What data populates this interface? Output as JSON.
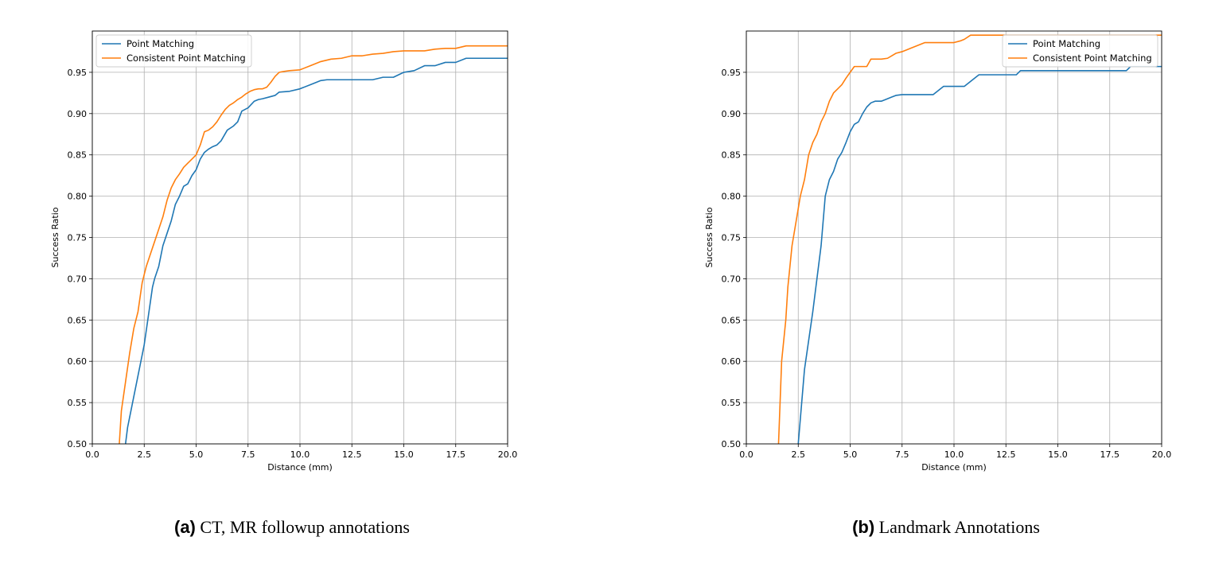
{
  "captions": [
    {
      "letter": "(a)",
      "text": " CT, MR followup annotations"
    },
    {
      "letter": "(b)",
      "text": " Landmark Annotations"
    }
  ],
  "chart_data": [
    {
      "type": "line",
      "xlabel": "Distance (mm)",
      "ylabel": "Success Ratio",
      "xlim": [
        0,
        20
      ],
      "ylim": [
        0.5,
        1.0
      ],
      "xticks": [
        "0.0",
        "2.5",
        "5.0",
        "7.5",
        "10.0",
        "12.5",
        "15.0",
        "17.5",
        "20.0"
      ],
      "yticks": [
        "0.50",
        "0.55",
        "0.60",
        "0.65",
        "0.70",
        "0.75",
        "0.80",
        "0.85",
        "0.90",
        "0.95"
      ],
      "grid": true,
      "legend_position": "upper-left",
      "series": [
        {
          "name": "Point Matching",
          "color": "#1f77b4",
          "x": [
            1.6,
            1.7,
            1.9,
            2.1,
            2.3,
            2.5,
            2.7,
            2.9,
            3.0,
            3.2,
            3.4,
            3.6,
            3.8,
            4.0,
            4.2,
            4.4,
            4.6,
            4.8,
            5.0,
            5.2,
            5.4,
            5.6,
            5.8,
            6.0,
            6.2,
            6.5,
            6.8,
            7.0,
            7.2,
            7.5,
            7.8,
            8.0,
            8.2,
            8.5,
            8.8,
            9.0,
            9.5,
            10.0,
            10.5,
            10.8,
            11.0,
            11.3,
            11.5,
            12.0,
            12.5,
            13.0,
            13.5,
            14.0,
            14.5,
            15.0,
            15.5,
            16.0,
            16.5,
            17.0,
            17.5,
            18.0,
            18.5,
            19.0,
            20.0
          ],
          "values": [
            0.5,
            0.52,
            0.545,
            0.57,
            0.595,
            0.62,
            0.655,
            0.69,
            0.7,
            0.715,
            0.74,
            0.755,
            0.77,
            0.79,
            0.8,
            0.812,
            0.815,
            0.825,
            0.832,
            0.845,
            0.853,
            0.857,
            0.86,
            0.862,
            0.867,
            0.88,
            0.885,
            0.89,
            0.903,
            0.907,
            0.915,
            0.917,
            0.918,
            0.92,
            0.922,
            0.926,
            0.927,
            0.93,
            0.935,
            0.938,
            0.94,
            0.941,
            0.941,
            0.941,
            0.941,
            0.941,
            0.941,
            0.944,
            0.944,
            0.95,
            0.952,
            0.958,
            0.958,
            0.962,
            0.962,
            0.967,
            0.967,
            0.967,
            0.967
          ]
        },
        {
          "name": "Consistent Point Matching",
          "color": "#ff7f0e",
          "x": [
            1.3,
            1.4,
            1.6,
            1.8,
            2.0,
            2.2,
            2.4,
            2.6,
            2.8,
            3.0,
            3.2,
            3.4,
            3.6,
            3.8,
            4.0,
            4.2,
            4.4,
            4.6,
            4.8,
            5.0,
            5.2,
            5.4,
            5.6,
            5.8,
            6.0,
            6.2,
            6.4,
            6.6,
            6.8,
            7.0,
            7.2,
            7.4,
            7.6,
            7.8,
            8.0,
            8.2,
            8.4,
            8.6,
            8.8,
            9.0,
            9.2,
            9.5,
            10.0,
            10.5,
            11.0,
            11.5,
            12.0,
            12.5,
            13.0,
            13.5,
            14.0,
            14.5,
            15.0,
            15.5,
            16.0,
            16.5,
            17.0,
            17.5,
            18.0,
            18.5,
            19.0,
            20.0
          ],
          "values": [
            0.5,
            0.54,
            0.575,
            0.61,
            0.64,
            0.66,
            0.695,
            0.715,
            0.73,
            0.745,
            0.76,
            0.775,
            0.795,
            0.81,
            0.82,
            0.827,
            0.835,
            0.84,
            0.845,
            0.85,
            0.862,
            0.878,
            0.88,
            0.884,
            0.89,
            0.898,
            0.905,
            0.91,
            0.913,
            0.917,
            0.92,
            0.924,
            0.927,
            0.929,
            0.93,
            0.93,
            0.932,
            0.938,
            0.945,
            0.95,
            0.951,
            0.952,
            0.953,
            0.958,
            0.963,
            0.966,
            0.967,
            0.97,
            0.97,
            0.972,
            0.973,
            0.975,
            0.976,
            0.976,
            0.976,
            0.978,
            0.979,
            0.979,
            0.982,
            0.982,
            0.982,
            0.982
          ]
        }
      ]
    },
    {
      "type": "line",
      "xlabel": "Distance (mm)",
      "ylabel": "Success Ratio",
      "xlim": [
        0,
        20
      ],
      "ylim": [
        0.5,
        1.0
      ],
      "xticks": [
        "0.0",
        "2.5",
        "5.0",
        "7.5",
        "10.0",
        "12.5",
        "15.0",
        "17.5",
        "20.0"
      ],
      "yticks": [
        "0.50",
        "0.55",
        "0.60",
        "0.65",
        "0.70",
        "0.75",
        "0.80",
        "0.85",
        "0.90",
        "0.95"
      ],
      "grid": true,
      "legend_position": "upper-right",
      "series": [
        {
          "name": "Point Matching",
          "color": "#1f77b4",
          "x": [
            2.5,
            2.6,
            2.8,
            3.0,
            3.2,
            3.4,
            3.6,
            3.8,
            4.0,
            4.2,
            4.4,
            4.6,
            4.8,
            5.0,
            5.2,
            5.4,
            5.6,
            5.8,
            6.0,
            6.2,
            6.5,
            6.8,
            7.0,
            7.2,
            7.5,
            8.0,
            8.5,
            9.0,
            9.5,
            10.0,
            10.5,
            11.0,
            11.2,
            12.0,
            12.5,
            13.0,
            13.2,
            13.5,
            14.0,
            15.0,
            16.0,
            17.0,
            18.0,
            18.3,
            18.5,
            19.0,
            20.0
          ],
          "values": [
            0.5,
            0.53,
            0.59,
            0.625,
            0.66,
            0.7,
            0.74,
            0.8,
            0.82,
            0.83,
            0.845,
            0.853,
            0.865,
            0.878,
            0.887,
            0.89,
            0.9,
            0.908,
            0.913,
            0.915,
            0.915,
            0.918,
            0.92,
            0.922,
            0.923,
            0.923,
            0.923,
            0.923,
            0.933,
            0.933,
            0.933,
            0.943,
            0.947,
            0.947,
            0.947,
            0.947,
            0.952,
            0.952,
            0.952,
            0.952,
            0.952,
            0.952,
            0.952,
            0.952,
            0.957,
            0.957,
            0.957
          ]
        },
        {
          "name": "Consistent Point Matching",
          "color": "#ff7f0e",
          "x": [
            1.55,
            1.7,
            1.9,
            2.0,
            2.2,
            2.4,
            2.6,
            2.8,
            3.0,
            3.2,
            3.4,
            3.6,
            3.8,
            4.0,
            4.2,
            4.4,
            4.6,
            4.8,
            5.0,
            5.2,
            5.5,
            5.8,
            6.0,
            6.2,
            6.5,
            6.8,
            7.0,
            7.2,
            7.5,
            7.8,
            8.0,
            8.3,
            8.6,
            9.0,
            9.5,
            10.0,
            10.3,
            10.5,
            10.8,
            11.0,
            12.0,
            13.0,
            14.0,
            15.0,
            16.0,
            17.0,
            18.0,
            19.0,
            20.0
          ],
          "values": [
            0.5,
            0.6,
            0.65,
            0.69,
            0.74,
            0.77,
            0.8,
            0.82,
            0.85,
            0.865,
            0.875,
            0.89,
            0.9,
            0.915,
            0.925,
            0.93,
            0.935,
            0.943,
            0.95,
            0.957,
            0.957,
            0.957,
            0.966,
            0.966,
            0.966,
            0.967,
            0.97,
            0.973,
            0.975,
            0.978,
            0.98,
            0.983,
            0.986,
            0.986,
            0.986,
            0.986,
            0.988,
            0.99,
            0.995,
            0.995,
            0.995,
            0.995,
            0.995,
            0.995,
            0.995,
            0.995,
            0.995,
            0.995,
            0.995
          ]
        }
      ]
    }
  ]
}
